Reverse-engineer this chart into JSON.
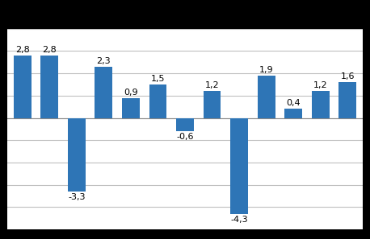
{
  "values": [
    2.8,
    2.8,
    -3.3,
    2.3,
    0.9,
    1.5,
    -0.6,
    1.2,
    -4.3,
    1.9,
    0.4,
    1.2,
    1.6
  ],
  "bar_color": "#2E75B6",
  "background_color": "#FFFFFF",
  "ylim": [
    -5.0,
    4.0
  ],
  "yticks": [
    -4.0,
    -3.0,
    -2.0,
    -1.0,
    0.0,
    1.0,
    2.0,
    3.0,
    4.0
  ],
  "grid_color": "#C0C0C0",
  "label_fontsize": 8,
  "bar_width": 0.65,
  "outer_border_color": "#000000"
}
